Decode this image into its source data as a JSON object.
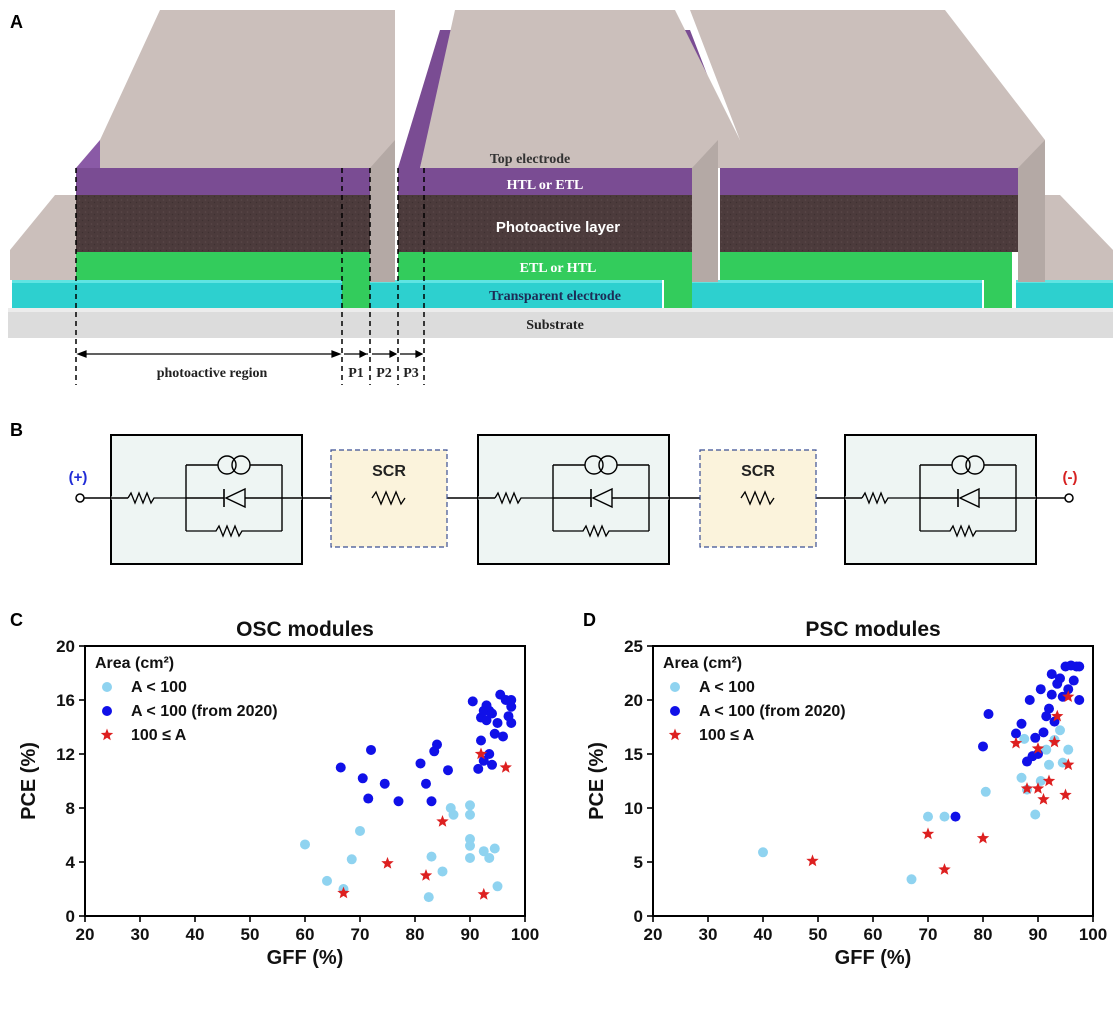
{
  "panels": {
    "a": {
      "letter": "A",
      "layers": {
        "top_electrode": "Top electrode",
        "htl_etl": "HTL or ETL",
        "photoactive": "Photoactive layer",
        "etl_htl": "ETL or HTL",
        "transparent": "Transparent electrode",
        "substrate": "Substrate"
      },
      "dimensions": {
        "photoactive_region": "photoactive region",
        "p1": "P1",
        "p2": "P2",
        "p3": "P3"
      },
      "colors": {
        "electrode": "#cbbfbb",
        "htl": "#7a4c93",
        "photoactive": "#4c3b3c",
        "etl": "#33cc5c",
        "transparent": "#2dd0cf",
        "substrate": "#dcdcdc"
      }
    },
    "b": {
      "letter": "B",
      "plus": "(+)",
      "minus": "(-)",
      "scr1": "SCR",
      "scr2": "SCR",
      "colors": {
        "plus": "#1f2bd6",
        "minus": "#d62020",
        "scr_fill": "#fbf3dc",
        "scr_border": "#3b4f93"
      }
    }
  },
  "chart_data": [
    {
      "panel": "C",
      "type": "scatter",
      "title": "OSC modules",
      "xlabel": "GFF (%)",
      "ylabel": "PCE (%)",
      "xlim": [
        20,
        100
      ],
      "ylim": [
        0,
        20
      ],
      "xticks": [
        20,
        30,
        40,
        50,
        60,
        70,
        80,
        90,
        100
      ],
      "yticks": [
        0,
        4,
        8,
        12,
        16,
        20
      ],
      "legend_title": "Area (cm²)",
      "legend_position": "top-left",
      "series": [
        {
          "name": "A < 100",
          "marker": "circle",
          "color": "#8fd3f0",
          "points": [
            [
              60,
              5.3
            ],
            [
              64,
              2.6
            ],
            [
              67,
              2.0
            ],
            [
              68.5,
              4.2
            ],
            [
              70,
              6.3
            ],
            [
              82.5,
              1.4
            ],
            [
              83,
              4.4
            ],
            [
              85,
              3.3
            ],
            [
              86.5,
              8.0
            ],
            [
              87,
              7.5
            ],
            [
              90,
              8.2
            ],
            [
              90,
              7.5
            ],
            [
              90,
              5.7
            ],
            [
              90,
              5.2
            ],
            [
              90,
              4.3
            ],
            [
              92.5,
              4.8
            ],
            [
              93.5,
              4.3
            ],
            [
              94.5,
              5.0
            ],
            [
              95,
              2.2
            ]
          ]
        },
        {
          "name": "A < 100 (from 2020)",
          "marker": "circle",
          "color": "#1010e8",
          "points": [
            [
              66.5,
              11.0
            ],
            [
              70.5,
              10.2
            ],
            [
              71.5,
              8.7
            ],
            [
              72,
              12.3
            ],
            [
              74.5,
              9.8
            ],
            [
              77,
              8.5
            ],
            [
              81,
              11.3
            ],
            [
              82,
              9.8
            ],
            [
              83,
              8.5
            ],
            [
              83.5,
              12.2
            ],
            [
              84,
              12.7
            ],
            [
              86,
              10.8
            ],
            [
              90.5,
              15.9
            ],
            [
              91.5,
              10.9
            ],
            [
              92,
              13.0
            ],
            [
              92,
              14.7
            ],
            [
              92.5,
              11.5
            ],
            [
              92.5,
              15.2
            ],
            [
              93,
              14.5
            ],
            [
              93,
              15.6
            ],
            [
              93.5,
              12.0
            ],
            [
              93.5,
              15.2
            ],
            [
              94,
              11.2
            ],
            [
              94,
              15.0
            ],
            [
              94.5,
              13.5
            ],
            [
              95,
              14.3
            ],
            [
              95.5,
              16.4
            ],
            [
              96,
              13.3
            ],
            [
              96.5,
              16.0
            ],
            [
              97,
              14.8
            ],
            [
              97.5,
              15.5
            ],
            [
              97.5,
              14.3
            ],
            [
              97.5,
              16.0
            ]
          ]
        },
        {
          "name": "100 ≤ A",
          "marker": "star",
          "color": "#dd2020",
          "points": [
            [
              67,
              1.7
            ],
            [
              75,
              3.9
            ],
            [
              82,
              3.0
            ],
            [
              85,
              7.0
            ],
            [
              92,
              12.0
            ],
            [
              92.5,
              1.6
            ],
            [
              96.5,
              11.0
            ]
          ]
        }
      ]
    },
    {
      "panel": "D",
      "type": "scatter",
      "title": "PSC modules",
      "xlabel": "GFF (%)",
      "ylabel": "PCE (%)",
      "xlim": [
        20,
        100
      ],
      "ylim": [
        0,
        25
      ],
      "xticks": [
        20,
        30,
        40,
        50,
        60,
        70,
        80,
        90,
        100
      ],
      "yticks": [
        0,
        5,
        10,
        15,
        20,
        25
      ],
      "legend_title": "Area (cm²)",
      "legend_position": "top-left",
      "series": [
        {
          "name": "A < 100",
          "marker": "circle",
          "color": "#8fd3f0",
          "points": [
            [
              40,
              5.9
            ],
            [
              67,
              3.4
            ],
            [
              70,
              9.2
            ],
            [
              73,
              9.2
            ],
            [
              80.5,
              11.5
            ],
            [
              87,
              12.8
            ],
            [
              87.5,
              16.4
            ],
            [
              88,
              11.7
            ],
            [
              89.5,
              9.4
            ],
            [
              90.5,
              12.5
            ],
            [
              91.5,
              15.4
            ],
            [
              92,
              14.0
            ],
            [
              93,
              16.3
            ],
            [
              94,
              17.2
            ],
            [
              94.5,
              14.2
            ],
            [
              95.5,
              15.4
            ]
          ]
        },
        {
          "name": "A < 100 (from 2020)",
          "marker": "circle",
          "color": "#1010e8",
          "points": [
            [
              75,
              9.2
            ],
            [
              80,
              15.7
            ],
            [
              81,
              18.7
            ],
            [
              86,
              16.9
            ],
            [
              87,
              17.8
            ],
            [
              88,
              14.3
            ],
            [
              88.5,
              20.0
            ],
            [
              89,
              14.8
            ],
            [
              89.5,
              16.5
            ],
            [
              90,
              15.0
            ],
            [
              90.5,
              21.0
            ],
            [
              91,
              17.0
            ],
            [
              91.5,
              18.5
            ],
            [
              92,
              19.2
            ],
            [
              92.5,
              20.5
            ],
            [
              92.5,
              22.4
            ],
            [
              93,
              18.0
            ],
            [
              93.5,
              21.5
            ],
            [
              94,
              22.0
            ],
            [
              94.5,
              20.3
            ],
            [
              95,
              23.1
            ],
            [
              95.5,
              21.0
            ],
            [
              96,
              23.2
            ],
            [
              96.5,
              21.8
            ],
            [
              97,
              23.1
            ],
            [
              97.5,
              20.0
            ],
            [
              97.5,
              23.1
            ]
          ]
        },
        {
          "name": "100 ≤ A",
          "marker": "star",
          "color": "#dd2020",
          "points": [
            [
              49,
              5.1
            ],
            [
              70,
              7.6
            ],
            [
              73,
              4.3
            ],
            [
              80,
              7.2
            ],
            [
              86,
              16.0
            ],
            [
              88,
              11.8
            ],
            [
              90,
              11.8
            ],
            [
              90,
              15.5
            ],
            [
              91,
              10.8
            ],
            [
              92,
              12.5
            ],
            [
              93,
              16.1
            ],
            [
              93.5,
              18.5
            ],
            [
              95,
              11.2
            ],
            [
              95.5,
              20.3
            ],
            [
              95.5,
              14.0
            ]
          ]
        }
      ]
    }
  ]
}
